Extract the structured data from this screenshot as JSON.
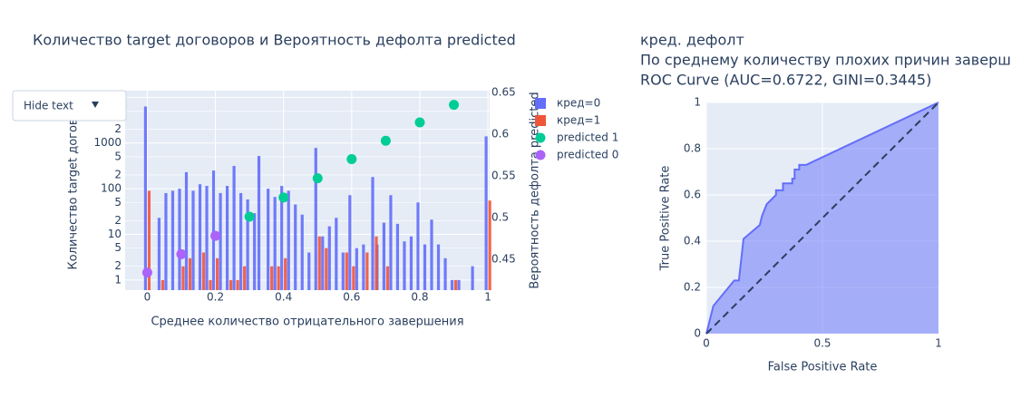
{
  "menu_button": "Hide text",
  "chart_data": [
    {
      "type": "bar",
      "title": "Количество target договоров и Вероятность дефолта predicted",
      "x_label": "Среднее количество отрицательного завершения",
      "y_label": "Количество target догово",
      "y2_label": "Вероятность дефолта predicted",
      "log_y": true,
      "grid": true,
      "xlim": [
        -0.065,
        1.005
      ],
      "xticks": [
        0,
        0.2,
        0.4,
        0.6,
        0.8,
        1
      ],
      "ylim": [
        0.6,
        14000
      ],
      "yticks": [
        1,
        2,
        5,
        10,
        {
          "value": 20,
          "label": "2"
        },
        {
          "value": 50,
          "label": "5"
        },
        100,
        {
          "value": 200,
          "label": "2"
        },
        {
          "value": 500,
          "label": "5"
        },
        1000,
        {
          "value": 2000,
          "label": "2"
        },
        {
          "value": 5000,
          "label": "5"
        },
        {
          "value": 10000,
          "label": "10k"
        }
      ],
      "y2lim": [
        0.413,
        0.652
      ],
      "y2ticks": [
        0.45,
        0.5,
        0.55,
        0.6,
        0.65
      ],
      "x": [
        0,
        0.04,
        0.06,
        0.08,
        0.1,
        0.12,
        0.14,
        0.16,
        0.18,
        0.2,
        0.22,
        0.24,
        0.26,
        0.28,
        0.3,
        0.32,
        0.333,
        0.36,
        0.38,
        0.4,
        0.42,
        0.44,
        0.46,
        0.48,
        0.5,
        0.52,
        0.54,
        0.56,
        0.58,
        0.6,
        0.62,
        0.64,
        0.667,
        0.68,
        0.7,
        0.72,
        0.74,
        0.76,
        0.78,
        0.8,
        0.82,
        0.84,
        0.86,
        0.88,
        0.9,
        0.92,
        0.96,
        1
      ],
      "series": [
        {
          "name": "кред=0",
          "color": "#636efa",
          "values": [
            6300,
            23,
            80,
            90,
            100,
            230,
            90,
            125,
            115,
            250,
            80,
            115,
            315,
            80,
            58,
            29,
            520,
            100,
            66,
            115,
            90,
            45,
            27,
            4,
            780,
            9,
            15,
            23,
            4,
            72,
            5,
            6,
            180,
            6,
            18,
            72,
            17,
            7,
            9,
            50,
            6,
            21,
            6,
            3,
            1,
            1,
            2,
            1400
          ]
        },
        {
          "name": "кред=1",
          "color": "#ef553b",
          "values": [
            90,
            1,
            null,
            null,
            2,
            3,
            null,
            4,
            1,
            3,
            null,
            1,
            1,
            2,
            null,
            null,
            null,
            2,
            2,
            3,
            null,
            null,
            null,
            null,
            9,
            5,
            null,
            null,
            4,
            2,
            null,
            4,
            9,
            null,
            2,
            null,
            null,
            null,
            null,
            null,
            null,
            null,
            null,
            null,
            1,
            null,
            null,
            55
          ]
        },
        {
          "name": "predicted 1",
          "color": "#00cc96",
          "axis": "y2",
          "type": "scatter",
          "x": [
            0.3,
            0.4,
            0.5,
            0.6,
            0.7,
            0.8,
            0.9
          ],
          "values": [
            0.501,
            0.524,
            0.547,
            0.57,
            0.592,
            0.614,
            0.635
          ]
        },
        {
          "name": "predicted 0",
          "color": "#ab63fa",
          "axis": "y2",
          "type": "scatter",
          "x": [
            0,
            0.1,
            0.2
          ],
          "values": [
            0.434,
            0.456,
            0.478
          ]
        }
      ]
    },
    {
      "type": "area",
      "title": [
        "кред. дефолт",
        "По среднему количеству плохих причин заверш",
        "ROC Curve (AUC=0.6722, GINI=0.3445)"
      ],
      "x_label": "False Positive Rate",
      "y_label": "True Positive Rate",
      "grid": true,
      "color": "#636efa",
      "xlim": [
        0,
        1
      ],
      "xticks": [
        0,
        0.5,
        1
      ],
      "ylim": [
        0,
        1
      ],
      "yticks": [
        0,
        0.2,
        0.4,
        0.6,
        0.8,
        1
      ],
      "x": [
        0,
        0.03,
        0.12,
        0.14,
        0.16,
        0.23,
        0.24,
        0.26,
        0.3,
        0.3,
        0.33,
        0.33,
        0.37,
        0.37,
        0.38,
        0.38,
        0.4,
        0.4,
        0.43,
        1
      ],
      "values": [
        0,
        0.12,
        0.23,
        0.23,
        0.41,
        0.47,
        0.51,
        0.56,
        0.6,
        0.62,
        0.62,
        0.65,
        0.65,
        0.67,
        0.67,
        0.71,
        0.71,
        0.73,
        0.73,
        1
      ]
    }
  ]
}
